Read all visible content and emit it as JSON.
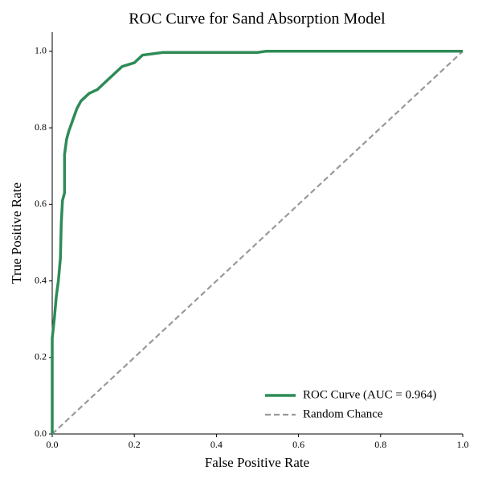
{
  "chart_data": {
    "type": "line",
    "title": "ROC Curve for Sand Absorption Model",
    "x_label": "False Positive Rate",
    "y_label": "True Positive Rate",
    "xlim": [
      0,
      1
    ],
    "ylim": [
      0,
      1.05
    ],
    "xticks": [
      {
        "value": 0,
        "label": "0.0"
      },
      0.2,
      0.4,
      0.6,
      0.8,
      {
        "value": 1,
        "label": "1.0"
      }
    ],
    "yticks": [
      {
        "value": 0,
        "label": "0.0"
      },
      0.2,
      0.4,
      0.6,
      0.8,
      {
        "value": 1,
        "label": "1.0"
      }
    ],
    "legend": "lower right",
    "series": [
      {
        "name": "ROC Curve (AUC = 0.964)",
        "color": "#2e8b57",
        "dash": false,
        "x": [
          0,
          0,
          0.005,
          0.01,
          0.015,
          0.02,
          0.022,
          0.025,
          0.03,
          0.03,
          0.035,
          0.04,
          0.05,
          0.06,
          0.07,
          0.09,
          0.11,
          0.13,
          0.15,
          0.17,
          0.2,
          0.22,
          0.27,
          0.5,
          0.52,
          1
        ],
        "values": [
          0,
          0.25,
          0.3,
          0.36,
          0.4,
          0.46,
          0.55,
          0.61,
          0.63,
          0.73,
          0.77,
          0.79,
          0.82,
          0.85,
          0.87,
          0.89,
          0.9,
          0.92,
          0.94,
          0.96,
          0.97,
          0.99,
          0.997,
          0.997,
          1,
          1
        ]
      },
      {
        "name": "Random Chance",
        "color": "#999999",
        "dash": true,
        "x": [
          0,
          1
        ],
        "values": [
          0,
          1
        ]
      }
    ]
  }
}
